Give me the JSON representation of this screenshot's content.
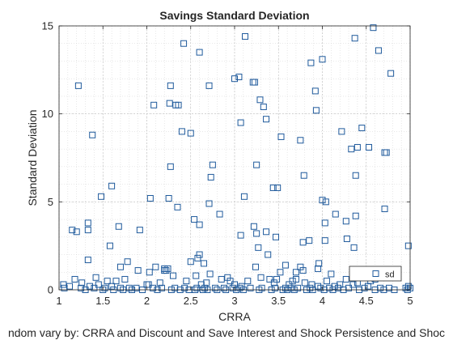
{
  "chart_data": {
    "type": "scatter",
    "title": "Savings Standard Deviation",
    "xlabel": "CRRA",
    "ylabel": "Standard Deviation",
    "caption": "ndom vary by: CRRA and Discount and Save Interest and Shock Persistence and Shoc",
    "xlim": [
      1,
      5
    ],
    "ylim": [
      0,
      15
    ],
    "xticks": [
      "1",
      "1.5",
      "2",
      "2.5",
      "3",
      "3.5",
      "4",
      "4.5",
      "5"
    ],
    "yticks": [
      "0",
      "5",
      "10",
      "15"
    ],
    "grid": true,
    "minor_grid": true,
    "legend_position": "bottom-right",
    "marker_color": "#1f5a9c",
    "series": [
      {
        "name": "sd",
        "x": [
          1.22,
          2.42,
          2.6,
          3.12,
          4.37,
          4.58,
          4.64,
          4.78,
          1.15,
          3.05,
          3.0,
          3.23,
          3.87,
          4.0,
          3.21,
          2.27,
          2.71,
          3.29,
          3.33,
          2.08,
          2.26,
          2.33,
          2.36,
          3.92,
          3.07,
          3.36,
          4.22,
          4.33,
          4.4,
          4.45,
          4.53,
          1.38,
          2.4,
          2.5,
          3.53,
          1.6,
          2.75,
          2.73,
          3.25,
          2.27,
          3.79,
          3.93,
          4.38,
          4.73,
          4.71,
          1.48,
          2.04,
          2.25,
          3.11,
          3.44,
          3.49,
          3.75,
          4.0,
          4.04,
          4.71,
          4.38,
          2.35,
          2.54,
          2.83,
          2.71,
          3.07,
          4.27,
          4.03,
          4.15,
          1.33,
          1.33,
          1.68,
          1.2,
          1.92,
          1.58,
          2.6,
          3.22,
          3.25,
          3.36,
          3.47,
          3.85,
          4.03,
          3.78,
          4.28,
          4.36,
          3.27,
          3.38,
          1.33,
          1.78,
          3.96,
          4.98,
          3.24,
          3.58,
          4.56,
          2.5,
          2.6,
          2.58,
          2.65,
          1.7,
          1.9,
          2.2,
          2.22,
          2.1,
          2.03,
          2.3,
          2.72,
          3.3,
          3.52,
          3.7,
          3.75,
          3.78,
          3.95,
          4.1,
          4.27,
          4.4,
          4.5,
          4.55,
          4.6,
          4.62,
          1.42,
          1.55,
          1.75,
          2.0,
          2.15,
          2.45,
          2.62,
          2.68,
          2.85,
          2.95,
          3.0,
          3.15,
          3.4,
          3.45,
          3.62,
          3.7,
          3.8,
          3.95,
          4.05,
          4.2,
          4.52,
          1.06,
          1.12,
          1.25,
          1.3,
          1.4,
          1.5,
          1.52,
          1.6,
          1.62,
          1.7,
          1.73,
          1.8,
          1.83,
          1.88,
          1.95,
          2.07,
          2.12,
          2.17,
          2.28,
          2.32,
          2.38,
          2.43,
          2.48,
          2.55,
          2.57,
          2.64,
          2.66,
          2.69,
          2.78,
          2.8,
          2.88,
          2.9,
          2.98,
          3.02,
          3.06,
          3.1,
          3.18,
          3.28,
          3.31,
          3.42,
          3.46,
          3.55,
          3.58,
          3.6,
          3.64,
          3.68,
          3.72,
          3.82,
          3.86,
          3.89,
          3.98,
          4.02,
          4.08,
          4.12,
          4.18,
          4.24,
          4.3,
          4.42,
          4.48,
          4.6,
          4.66,
          4.7,
          4.76,
          4.82,
          4.95,
          4.97,
          5.0,
          1.05,
          1.35,
          1.45,
          2.2,
          2.24,
          2.56,
          2.92,
          3.48,
          3.66,
          4.35,
          1.18,
          1.26,
          1.65,
          2.02,
          3.08,
          3.88,
          4.14,
          4.58,
          4.98
        ],
        "y": [
          11.6,
          14.0,
          13.5,
          14.4,
          14.3,
          14.9,
          13.6,
          12.3,
          3.4,
          12.1,
          12.0,
          11.8,
          12.9,
          13.1,
          11.8,
          11.6,
          11.6,
          10.8,
          10.4,
          10.5,
          10.6,
          10.5,
          10.5,
          11.3,
          9.5,
          9.7,
          9.0,
          8.0,
          8.1,
          9.2,
          8.1,
          8.8,
          9.0,
          8.9,
          8.7,
          5.9,
          7.1,
          6.4,
          7.1,
          7.0,
          6.5,
          10.2,
          6.5,
          7.8,
          7.8,
          5.3,
          5.2,
          5.2,
          5.3,
          5.8,
          5.8,
          8.5,
          5.1,
          5.0,
          4.6,
          4.2,
          4.7,
          4.0,
          4.3,
          4.9,
          3.1,
          3.9,
          3.8,
          4.3,
          3.8,
          3.4,
          3.6,
          3.3,
          3.4,
          2.5,
          3.7,
          3.6,
          3.2,
          3.3,
          3.0,
          2.8,
          2.8,
          2.7,
          2.9,
          2.4,
          2.4,
          2.0,
          1.7,
          1.6,
          1.5,
          2.5,
          1.3,
          1.4,
          1.1,
          1.6,
          2.0,
          1.8,
          1.5,
          1.3,
          1.1,
          1.2,
          1.1,
          1.3,
          1.0,
          0.8,
          0.9,
          0.7,
          1.0,
          1.0,
          1.3,
          1.1,
          1.2,
          0.9,
          0.6,
          0.4,
          0.8,
          0.5,
          0.6,
          0.9,
          0.7,
          0.5,
          0.6,
          0.3,
          0.4,
          0.5,
          0.3,
          0.4,
          0.6,
          0.5,
          0.3,
          0.5,
          0.6,
          0.4,
          0.3,
          0.6,
          0.4,
          0.2,
          0.5,
          0.3,
          0.2,
          0.1,
          0.2,
          0.1,
          0.0,
          0.1,
          0.0,
          0.1,
          0.2,
          0.0,
          0.1,
          0.0,
          0.1,
          0.0,
          0.1,
          0.0,
          0.1,
          0.0,
          0.1,
          0.0,
          0.1,
          0.0,
          0.1,
          0.0,
          0.0,
          0.1,
          0.0,
          0.1,
          0.0,
          0.1,
          0.0,
          0.1,
          0.0,
          0.1,
          0.0,
          0.1,
          0.0,
          0.1,
          0.0,
          0.1,
          0.0,
          0.1,
          0.0,
          0.1,
          0.0,
          0.1,
          0.0,
          0.1,
          0.0,
          0.1,
          0.0,
          0.1,
          0.0,
          0.1,
          0.0,
          0.1,
          0.0,
          0.1,
          0.0,
          0.1,
          0.0,
          0.1,
          0.0,
          0.1,
          0.0,
          0.1,
          0.0,
          0.1,
          0.3,
          0.2,
          0.3,
          1.1,
          1.2,
          0.8,
          0.7,
          0.6,
          0.5,
          0.3,
          0.6,
          0.4,
          0.5,
          0.3,
          0.2,
          0.3,
          0.2,
          0.8,
          0.2
        ]
      }
    ]
  }
}
